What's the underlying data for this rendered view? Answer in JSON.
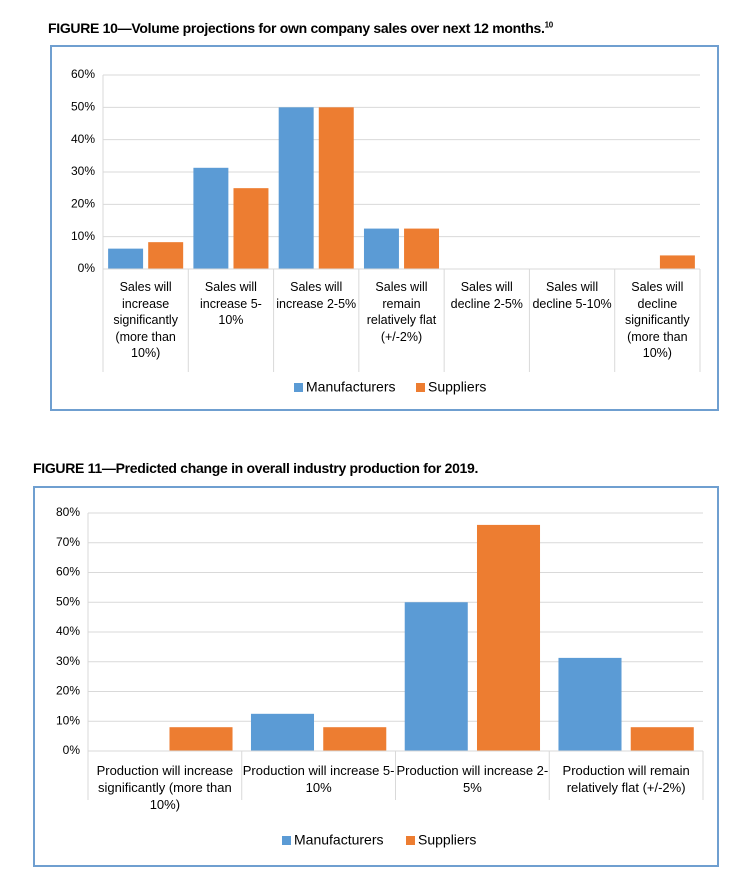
{
  "chart_data": [
    {
      "type": "bar",
      "title": "FIGURE 10—Volume projections for own company sales over next 12 months.",
      "title_note": "10",
      "categories": [
        "Sales will increase significantly (more than 10%)",
        "Sales will increase 5-10%",
        "Sales will increase 2-5%",
        "Sales will remain relatively flat (+/-2%)",
        "Sales will decline 2-5%",
        "Sales will decline 5-10%",
        "Sales will decline significantly (more than 10%)"
      ],
      "series": [
        {
          "name": "Manufacturers",
          "color": "#5b9bd5",
          "values": [
            6.3,
            31.3,
            50,
            12.5,
            0,
            0,
            0
          ]
        },
        {
          "name": "Suppliers",
          "color": "#ed7d31",
          "values": [
            8.3,
            25,
            50,
            12.5,
            0,
            0,
            4.2
          ]
        }
      ],
      "ylim": [
        0,
        60
      ],
      "yticks": [
        {
          "value": 0,
          "label": "0%"
        },
        {
          "value": 10,
          "label": "10%"
        },
        {
          "value": 20,
          "label": "20%"
        },
        {
          "value": 30,
          "label": "30%"
        },
        {
          "value": 40,
          "label": "40%"
        },
        {
          "value": 50,
          "label": "50%"
        },
        {
          "value": 60,
          "label": "60%"
        }
      ],
      "grid": true,
      "legend": "bottom"
    },
    {
      "type": "bar",
      "title": "FIGURE 11—Predicted change in overall industry production for 2019.",
      "categories": [
        "Production will increase significantly (more than 10%)",
        "Production will increase 5-10%",
        "Production will increase 2-5%",
        "Production will remain relatively flat (+/-2%)"
      ],
      "series": [
        {
          "name": "Manufacturers",
          "color": "#5b9bd5",
          "values": [
            0,
            12.5,
            50,
            31.3
          ]
        },
        {
          "name": "Suppliers",
          "color": "#ed7d31",
          "values": [
            8,
            8,
            76,
            8
          ]
        }
      ],
      "ylim": [
        0,
        80
      ],
      "yticks": [
        {
          "value": 0,
          "label": "0%"
        },
        {
          "value": 10,
          "label": "10%"
        },
        {
          "value": 20,
          "label": "20%"
        },
        {
          "value": 30,
          "label": "30%"
        },
        {
          "value": 40,
          "label": "40%"
        },
        {
          "value": 50,
          "label": "50%"
        },
        {
          "value": 60,
          "label": "60%"
        },
        {
          "value": 70,
          "label": "70%"
        },
        {
          "value": 80,
          "label": "80%"
        }
      ],
      "grid": true,
      "legend": "bottom"
    }
  ]
}
